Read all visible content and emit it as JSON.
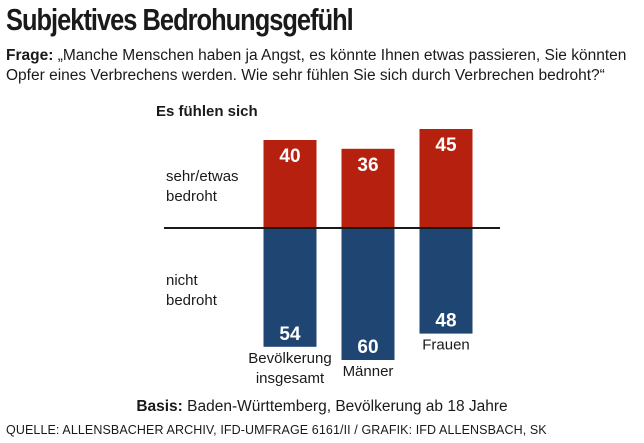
{
  "title": "Subjektives Bedrohungsgefühl",
  "question": {
    "label": "Frage:",
    "text": "„Manche Menschen haben ja Angst, es könnte Ihnen etwas passieren, Sie könnten Opfer eines Verbrechens werden. Wie sehr fühlen Sie sich durch Verbrechen bedroht?“"
  },
  "colors": {
    "threatened": "#b5200f",
    "not_threatened": "#1f4572",
    "baseline": "#1a1a1a"
  },
  "chart_data": {
    "type": "bar",
    "title": "Es fühlen sich",
    "categories": [
      "Bevölkerung insgesamt",
      "Männer",
      "Frauen"
    ],
    "category_lines": [
      [
        "Bevölkerung",
        "insgesamt"
      ],
      [
        "Männer"
      ],
      [
        "Frauen"
      ]
    ],
    "series": [
      {
        "name": "sehr/etwas bedroht",
        "name_lines": [
          "sehr/etwas",
          "bedroht"
        ],
        "values": [
          40,
          36,
          45
        ],
        "direction": "up"
      },
      {
        "name": "nicht bedroht",
        "name_lines": [
          "nicht",
          "bedroht"
        ],
        "values": [
          54,
          60,
          48
        ],
        "direction": "down"
      }
    ],
    "unit": "%"
  },
  "footer": {
    "basis_label": "Basis:",
    "basis_text": "Baden-Württemberg, Bevölkerung ab 18 Jahre",
    "source": "QUELLE: ALLENSBACHER ARCHIV, IFD-UMFRAGE 6161/II  / GRAFIK: IFD ALLENSBACH, SK"
  }
}
